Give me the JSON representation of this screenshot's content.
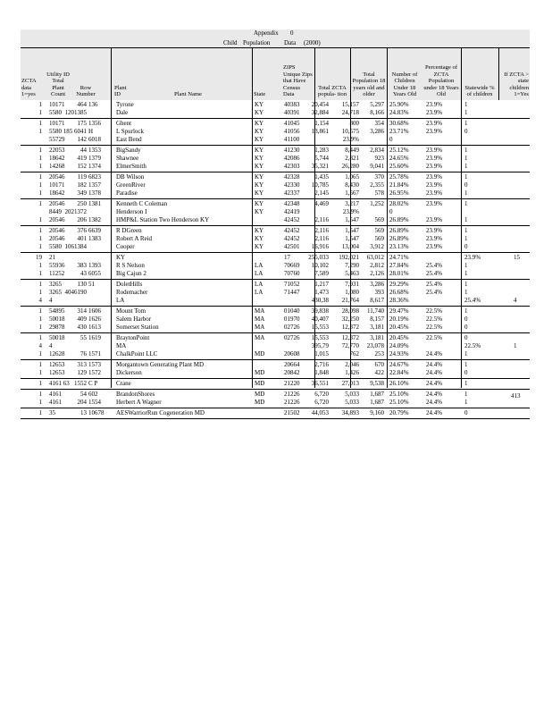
{
  "header": {
    "appendix": "Appendix",
    "appendix_num": "0",
    "child": "Child",
    "population": "Population",
    "data": "Data",
    "year": "(2000)"
  },
  "columns": [
    "ZCTA data 1=yes",
    "Utility ID Total Plant Count",
    "Row Number",
    "Plant ID",
    "Plant Name",
    "State",
    "ZIPS Unique Zips that Have Census Data",
    "Total ZCTA popula- tion",
    "Total Population 18 years old and older",
    "Number of Children Under 18 Years Old",
    "Percentage of ZCTA Population under 18 Years Old",
    "Statewide % of children",
    "If ZCTA > state children 1=Yes"
  ],
  "groups": [
    [
      [
        "1",
        "10171",
        "464",
        "136",
        "Tyrone",
        "KY",
        "40383",
        "20,454",
        "15,157",
        "5,297",
        "25.90%",
        "23.9%",
        "1",
        ""
      ],
      [
        "1",
        "5580",
        "1201385",
        "",
        "Dale",
        "KY",
        "40391",
        "32,884",
        "24,718",
        "8,166",
        "24.83%",
        "23.9%",
        "1",
        ""
      ]
    ],
    [
      [
        "1",
        "10171",
        "175",
        "1356",
        "Ghent",
        "KY",
        "41045",
        "1,154",
        "800",
        "354",
        "30.68%",
        "23.9%",
        "1",
        ""
      ],
      [
        "1",
        "5580 185",
        "6041",
        "H",
        "L Spurlock",
        "KY",
        "41056",
        "13,861",
        "10,575",
        "3,286",
        "23.71%",
        "23.9%",
        "0",
        ""
      ],
      [
        "",
        "55729",
        "142",
        "6018",
        "East Bend",
        "KY",
        "41100",
        "",
        "23.9%",
        "",
        "0",
        "",
        "",
        ""
      ]
    ],
    [
      [
        "1",
        "22053",
        "44",
        "1353",
        "BigSandy",
        "KY",
        "41230",
        "1,283",
        "8,449",
        "2,834",
        "25.12%",
        "23.9%",
        "1",
        ""
      ],
      [
        "1",
        "18642",
        "419",
        "1379",
        "Shawnee",
        "KY",
        "42086",
        "5,744",
        "2,821",
        "923",
        "24.65%",
        "23.9%",
        "1",
        ""
      ],
      [
        "1",
        "14268",
        "152",
        "1374",
        "ElmerSmith",
        "KY",
        "42303",
        "35,321",
        "26,280",
        "9,041",
        "25.60%",
        "23.9%",
        "1",
        ""
      ]
    ],
    [
      [
        "1",
        "20546",
        "119",
        "6823",
        "DB Wilson",
        "KY",
        "42328",
        "1,435",
        "1,065",
        "370",
        "25.78%",
        "23.9%",
        "1",
        ""
      ],
      [
        "1",
        "10171",
        "182",
        "1357",
        "GreenRiver",
        "KY",
        "42330",
        "10,785",
        "8,430",
        "2,355",
        "21.84%",
        "23.9%",
        "0",
        ""
      ],
      [
        "1",
        "18642",
        "349",
        "1378",
        "Paradise",
        "KY",
        "42337",
        "2,145",
        "1,567",
        "578",
        "26.95%",
        "23.9%",
        "1",
        ""
      ]
    ],
    [
      [
        "1",
        "20546",
        "250",
        "1381",
        "Kenneth C Coleman",
        "KY",
        "42348",
        "4,469",
        "3,217",
        "1,252",
        "28.02%",
        "23.9%",
        "1",
        ""
      ],
      [
        "",
        "8449",
        "2021372",
        "",
        "Henderson I",
        "KY",
        "42419",
        "",
        "23.9%",
        "",
        "0",
        "",
        "",
        ""
      ],
      [
        "1",
        "20546",
        "206",
        "1382",
        "HMP&L Station Two Henderson KY",
        "",
        "42452",
        "2,116",
        "1,547",
        "569",
        "26.89%",
        "23.9%",
        "1",
        ""
      ]
    ],
    [
      [
        "1",
        "20546",
        "376",
        "6639",
        "R DGreen",
        "KY",
        "42452",
        "2,116",
        "1,547",
        "569",
        "26.89%",
        "23.9%",
        "1",
        ""
      ],
      [
        "1",
        "20546",
        "401",
        "1383",
        "Robert A Reid",
        "KY",
        "42452",
        "2,116",
        "1,547",
        "569",
        "26.89%",
        "23.9%",
        "1",
        ""
      ],
      [
        "1",
        "5580",
        "1061384",
        "",
        "Cooper",
        "KY",
        "42501",
        "16,916",
        "13,004",
        "3,912",
        "23.13%",
        "23.9%",
        "0",
        ""
      ]
    ],
    [
      [
        "19",
        "21",
        "",
        "",
        "KY",
        "",
        "17",
        "255,033",
        "192,021",
        "63,012",
        "24.71%",
        "",
        "23.9%",
        "15"
      ],
      [
        "1",
        "55936",
        "383",
        "1393",
        "R S Nelson",
        "LA",
        "70669",
        "10,102",
        "7,290",
        "2,812",
        "27.84%",
        "25.4%",
        "1",
        ""
      ],
      [
        "1",
        "11252",
        "43",
        "6055",
        "Big Cajun 2",
        "LA",
        "70760",
        "7,589",
        "5,463",
        "2,126",
        "28.01%",
        "25.4%",
        "1",
        ""
      ]
    ],
    [
      [
        "1",
        "3265",
        "130",
        "51",
        "DoletHills",
        "LA",
        "71052",
        "1,217",
        "7,931",
        "3,286",
        "29.29%",
        "25.4%",
        "1",
        ""
      ],
      [
        "1",
        "3265",
        "4046190",
        "",
        "Rodemacher",
        "LA",
        "71447",
        "1,473",
        "1,080",
        "393",
        "26.68%",
        "25.4%",
        "1",
        ""
      ],
      [
        "4",
        "4",
        "",
        "",
        "LA",
        "",
        "",
        "430,38",
        "21,764",
        "8,617",
        "28.36%",
        "",
        "25.4%",
        "4"
      ]
    ],
    [
      [
        "1",
        "54895",
        "314",
        "1606",
        "Mount Tom",
        "MA",
        "01040",
        "39,838",
        "28,098",
        "11,740",
        "29.47%",
        "22.5%",
        "1",
        ""
      ],
      [
        "1",
        "50018",
        "409",
        "1626",
        "Salem Harbor",
        "MA",
        "01970",
        "40,407",
        "32,250",
        "8,157",
        "20.19%",
        "22.5%",
        "0",
        ""
      ],
      [
        "1",
        "29878",
        "430",
        "1613",
        "Somerset Station",
        "MA",
        "02726",
        "15,553",
        "12,372",
        "3,181",
        "20.45%",
        "22.5%",
        "0",
        ""
      ]
    ],
    [
      [
        "1",
        "50018",
        "55",
        "1619",
        "BraytonPoint",
        "MA",
        "02726",
        "15,553",
        "12,372",
        "3,181",
        "20.45%",
        "22.5%",
        "0",
        ""
      ],
      [
        "4",
        "4",
        "",
        "",
        "MA",
        "",
        "",
        "395,79",
        "72,770",
        "23,078",
        "24.09%",
        "",
        "22.5%",
        "1"
      ],
      [
        "1",
        "12628",
        "76",
        "1571",
        "ChalkPoint LLC",
        "MD",
        "20608",
        "1,015",
        "762",
        "253",
        "24.93%",
        "24.4%",
        "1",
        ""
      ]
    ],
    [
      [
        "1",
        "12653",
        "313",
        "1573",
        "Morgantown Generating Plant MD",
        "",
        "20664",
        "2,716",
        "2,046",
        "670",
        "24.67%",
        "24.4%",
        "1",
        ""
      ],
      [
        "1",
        "12653",
        "129",
        "1572",
        "Dickerson",
        "MD",
        "20842",
        "1,848",
        "1,426",
        "422",
        "22.84%",
        "24.4%",
        "0",
        ""
      ]
    ],
    [
      [
        "1",
        "4161 63",
        "1552",
        "C P",
        "Crane",
        "MD",
        "21220",
        "36,551",
        "27,013",
        "9,538",
        "26.10%",
        "24.4%",
        "1",
        ""
      ]
    ],
    [
      [
        "1",
        "4161",
        "54",
        "602",
        "BrandonShores",
        "MD",
        "21226",
        "6,720",
        "5,033",
        "1,687",
        "25.10%",
        "24.4%",
        "1",
        ""
      ],
      [
        "1",
        "4161",
        "204",
        "1554",
        "Herbert A Wagner",
        "MD",
        "21226",
        "6,720",
        "5,033",
        "1,687",
        "25.10%",
        "24.4%",
        "1",
        ""
      ]
    ],
    [
      [
        "1",
        "35",
        "13",
        "10678",
        "AESWarriorRun Cogeneration MD",
        "",
        "21502",
        "44,053",
        "34,893",
        "9,160",
        "20.79%",
        "24.4%",
        "0",
        ""
      ]
    ]
  ],
  "page_number": "413"
}
